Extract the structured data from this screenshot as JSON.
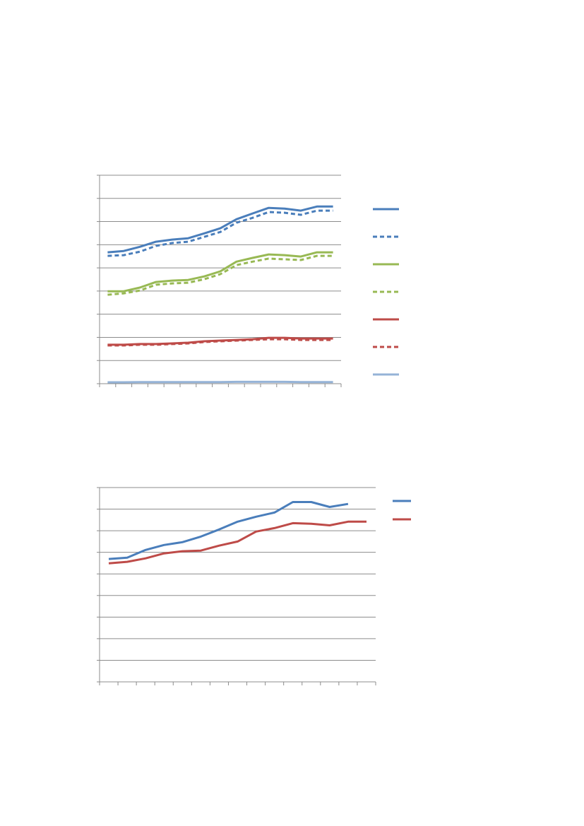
{
  "chart_data": [
    {
      "type": "line",
      "grid": true,
      "legend": "right",
      "ylim": [
        0,
        9
      ],
      "yticks": [
        0,
        1,
        2,
        3,
        4,
        5,
        6,
        7,
        8,
        9
      ],
      "categories": [
        null,
        null,
        null,
        null,
        null,
        null,
        null,
        null,
        null,
        null,
        null,
        null,
        null,
        null,
        null
      ],
      "series": [
        {
          "color": "#4a7ebb",
          "dashed": false,
          "values": [
            5.67,
            5.73,
            5.91,
            6.13,
            6.22,
            6.28,
            6.49,
            6.71,
            7.1,
            7.35,
            7.59,
            7.56,
            7.47,
            7.65,
            7.65
          ]
        },
        {
          "color": "#4a7ebb",
          "dashed": true,
          "values": [
            5.52,
            5.55,
            5.7,
            5.95,
            6.07,
            6.13,
            6.34,
            6.55,
            6.95,
            7.16,
            7.41,
            7.38,
            7.29,
            7.47,
            7.47
          ]
        },
        {
          "color": "#98b954",
          "dashed": false,
          "values": [
            3.99,
            3.99,
            4.15,
            4.39,
            4.45,
            4.48,
            4.63,
            4.85,
            5.27,
            5.43,
            5.58,
            5.55,
            5.49,
            5.67,
            5.67
          ]
        },
        {
          "color": "#98b954",
          "dashed": true,
          "values": [
            3.84,
            3.9,
            4.02,
            4.27,
            4.33,
            4.36,
            4.51,
            4.73,
            5.12,
            5.27,
            5.4,
            5.37,
            5.34,
            5.52,
            5.52
          ]
        },
        {
          "color": "#be4b48",
          "dashed": false,
          "values": [
            1.68,
            1.68,
            1.71,
            1.71,
            1.74,
            1.77,
            1.83,
            1.86,
            1.89,
            1.92,
            1.98,
            1.98,
            1.95,
            1.95,
            1.95
          ]
        },
        {
          "color": "#be4b48",
          "dashed": true,
          "values": [
            1.65,
            1.65,
            1.68,
            1.68,
            1.71,
            1.74,
            1.8,
            1.83,
            1.86,
            1.89,
            1.92,
            1.92,
            1.89,
            1.89,
            1.89
          ]
        },
        {
          "color": "#95b3d7",
          "dashed": false,
          "values": [
            0.06,
            0.06,
            0.07,
            0.07,
            0.07,
            0.07,
            0.07,
            0.07,
            0.08,
            0.08,
            0.08,
            0.08,
            0.07,
            0.07,
            0.07
          ]
        }
      ]
    },
    {
      "type": "line",
      "grid": true,
      "legend": "top-right",
      "ylim": [
        0,
        9
      ],
      "yticks": [
        0,
        1,
        2,
        3,
        4,
        5,
        6,
        7,
        8,
        9
      ],
      "categories": [
        null,
        null,
        null,
        null,
        null,
        null,
        null,
        null,
        null,
        null,
        null,
        null,
        null,
        null,
        null
      ],
      "series": [
        {
          "color": "#4a7ebb",
          "dashed": false,
          "values": [
            5.69,
            5.75,
            6.11,
            6.34,
            6.47,
            6.73,
            7.06,
            7.42,
            7.65,
            7.84,
            8.33,
            8.33,
            8.1,
            8.24,
            null
          ]
        },
        {
          "color": "#be4b48",
          "dashed": false,
          "values": [
            5.49,
            5.56,
            5.72,
            5.95,
            6.05,
            6.08,
            6.31,
            6.5,
            6.96,
            7.12,
            7.35,
            7.32,
            7.25,
            7.42,
            7.42
          ]
        }
      ]
    }
  ]
}
